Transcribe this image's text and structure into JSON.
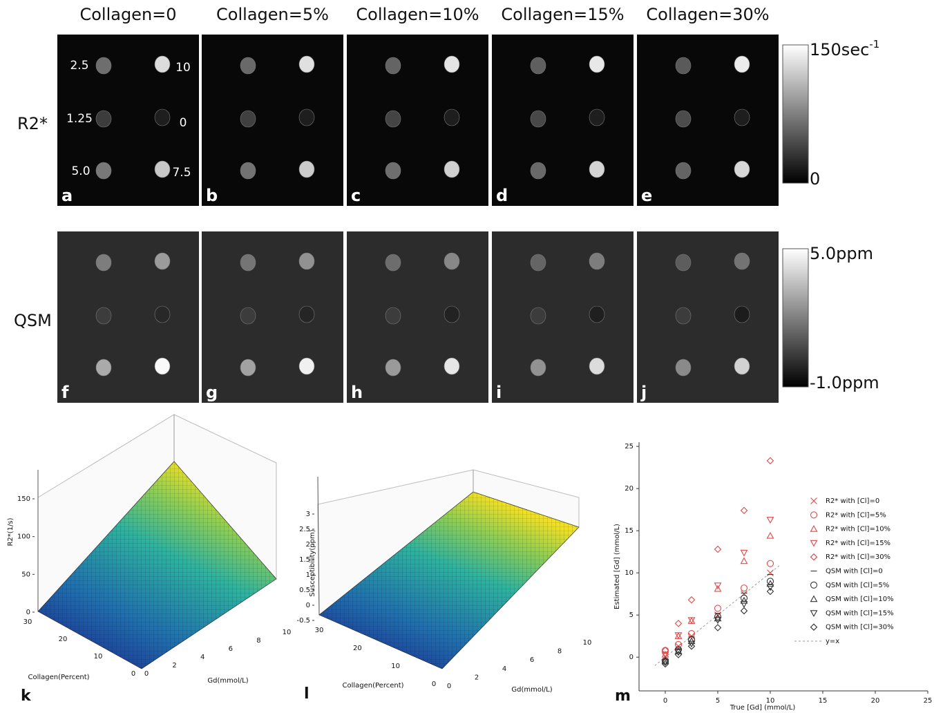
{
  "columns": [
    "Collagen=0",
    "Collagen=5%",
    "Collagen=10%",
    "Collagen=15%",
    "Collagen=30%"
  ],
  "rows": [
    {
      "label": "R2*",
      "panels": [
        "a",
        "b",
        "c",
        "d",
        "e"
      ],
      "colorbar": {
        "max": "150sec",
        "max_sup": "-1",
        "min": "0"
      }
    },
    {
      "label": "QSM",
      "panels": [
        "f",
        "g",
        "h",
        "i",
        "j"
      ],
      "colorbar": {
        "max": "5.0ppm",
        "min": "-1.0ppm"
      }
    }
  ],
  "vial_labels": [
    "2.5",
    "10",
    "1.25",
    "0",
    "5.0",
    "7.5"
  ],
  "surface_plots": [
    {
      "panel_label": "k",
      "zlabel": "R2*(1/s)",
      "collagen_label": "Collagen(Percent)",
      "gd_label": "Gd(mmol/L)",
      "zticks": [
        0,
        50,
        100,
        150
      ],
      "collagen_ticks": [
        30,
        20,
        10,
        0
      ],
      "gd_ticks": [
        0,
        2,
        4,
        6,
        8,
        10
      ]
    },
    {
      "panel_label": "l",
      "zlabel": "Susceptibility(ppm)",
      "collagen_label": "Collagen(Percent)",
      "gd_label": "Gd(mmol/L)",
      "zticks": [
        -0.5,
        0,
        0.5,
        1,
        1.5,
        2,
        2.5,
        3
      ],
      "collagen_ticks": [
        30,
        20,
        10,
        0
      ],
      "gd_ticks": [
        0,
        2,
        4,
        6,
        8,
        10
      ]
    }
  ],
  "chart_data": {
    "type": "scatter",
    "panel_label": "m",
    "xlabel": "True [Gd] (mmol/L)",
    "ylabel": "Estimated [Gd] (mmol/L)",
    "xlim": [
      -2.5,
      25
    ],
    "ylim": [
      -4,
      25.5
    ],
    "xticks": [
      0,
      5,
      10,
      15,
      20,
      25
    ],
    "yticks": [
      0,
      5,
      10,
      15,
      20,
      25
    ],
    "legend": "right",
    "x": [
      0,
      1.25,
      2.5,
      5,
      7.5,
      10
    ],
    "series": [
      {
        "name": "R2* with [Cl]=0",
        "color": "#e04848",
        "marker": "x",
        "values": [
          0.1,
          1.3,
          2.5,
          5.0,
          7.5,
          10.0
        ]
      },
      {
        "name": "R2* with [Cl]=5%",
        "color": "#e04848",
        "marker": "o",
        "values": [
          0.8,
          1.5,
          2.8,
          5.8,
          8.2,
          11.1
        ]
      },
      {
        "name": "R2* with [Cl]=10%",
        "color": "#e04848",
        "marker": "^",
        "values": [
          0.3,
          2.5,
          4.3,
          8.1,
          11.4,
          14.4
        ]
      },
      {
        "name": "R2* with [Cl]=15%",
        "color": "#e04848",
        "marker": "v",
        "values": [
          0.3,
          2.6,
          4.4,
          8.5,
          12.4,
          16.3
        ]
      },
      {
        "name": "R2* with [Cl]=30%",
        "color": "#e04848",
        "marker": "d",
        "values": [
          0.8,
          4.0,
          6.8,
          12.8,
          17.4,
          23.3
        ]
      },
      {
        "name": "QSM with [Cl]=0",
        "color": "#333333",
        "marker": "-",
        "values": [
          -0.2,
          1.0,
          2.4,
          5.2,
          7.6,
          9.8
        ]
      },
      {
        "name": "QSM with [Cl]=5%",
        "color": "#333333",
        "marker": "o",
        "values": [
          -0.5,
          0.9,
          2.1,
          4.8,
          7.0,
          9.0
        ]
      },
      {
        "name": "QSM with [Cl]=10%",
        "color": "#333333",
        "marker": "^",
        "values": [
          -0.4,
          0.7,
          1.9,
          4.6,
          6.7,
          8.7
        ]
      },
      {
        "name": "QSM with [Cl]=15%",
        "color": "#333333",
        "marker": "v",
        "values": [
          -0.6,
          0.6,
          1.6,
          4.4,
          6.3,
          8.3
        ]
      },
      {
        "name": "QSM with [Cl]=30%",
        "color": "#333333",
        "marker": "d",
        "values": [
          -0.8,
          0.3,
          1.3,
          3.5,
          5.5,
          7.8
        ]
      }
    ],
    "reference": {
      "name": "y=x",
      "color": "#999999",
      "x": [
        -1,
        11
      ],
      "values": [
        -1,
        11
      ]
    }
  }
}
